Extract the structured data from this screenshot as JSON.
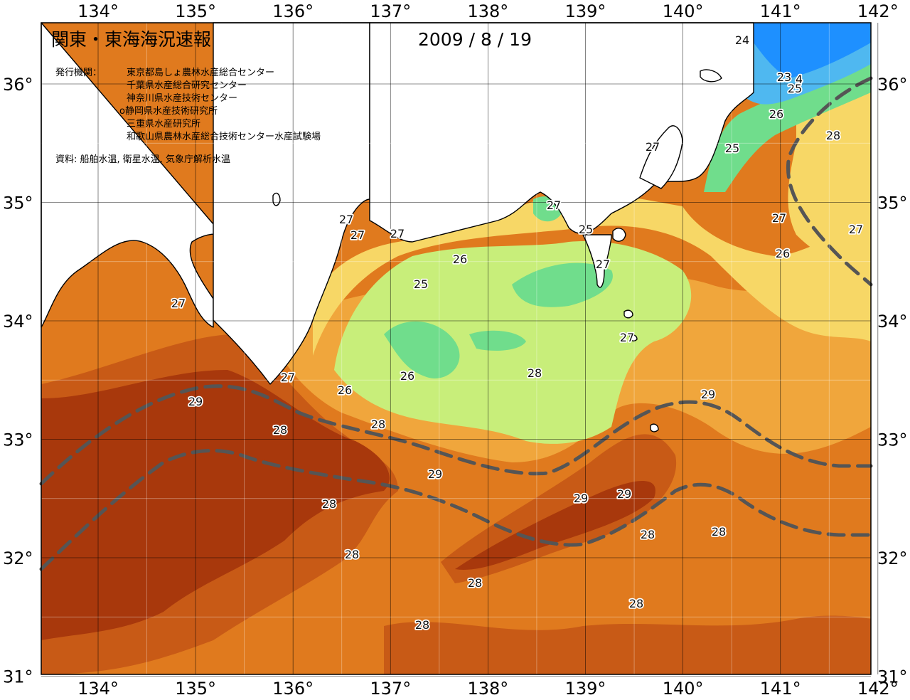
{
  "title": "関東・東海海況速報",
  "date": "2009 / 8 / 19",
  "issuer_label": "発行機関：",
  "issuers": [
    "東京都島しょ農林水産総合センター",
    "千葉県水産総合研究センター",
    "神奈川県水産技術センター",
    "o静岡県水産技術研究所",
    "三重県水産研究所",
    "和歌山県農林水産総合技術センター水産試験場"
  ],
  "source": "資料: 船舶水温, 衛星水温, 気象庁解析水温",
  "longitudes": [
    "134°",
    "135°",
    "136°",
    "137°",
    "138°",
    "139°",
    "140°",
    "141°",
    "142°"
  ],
  "latitudes": [
    "36°",
    "35°",
    "34°",
    "33°",
    "32°",
    "31°"
  ],
  "contour_labels": [
    "24",
    "23",
    "4",
    "25",
    "26",
    "28",
    "25",
    "27",
    "27",
    "27",
    "27",
    "27",
    "25",
    "27",
    "27",
    "27",
    "26",
    "26",
    "25",
    "27",
    "27",
    "27",
    "26",
    "26",
    "28",
    "29",
    "29",
    "28",
    "28",
    "29",
    "29",
    "29",
    "28",
    "28",
    "28",
    "28",
    "28",
    "28",
    "28"
  ],
  "colors": {
    "sst_23": "#1e90ff",
    "sst_24": "#4fb8f0",
    "sst_25": "#70dd8c",
    "sst_26": "#c8ee7a",
    "sst_27": "#f7d766",
    "sst_27_5": "#f0a63c",
    "sst_28": "#e07a1e",
    "sst_29": "#c85a16",
    "sst_29_5": "#a8380c",
    "land": "#ffffff",
    "kuroshio_axis": "#555555"
  }
}
